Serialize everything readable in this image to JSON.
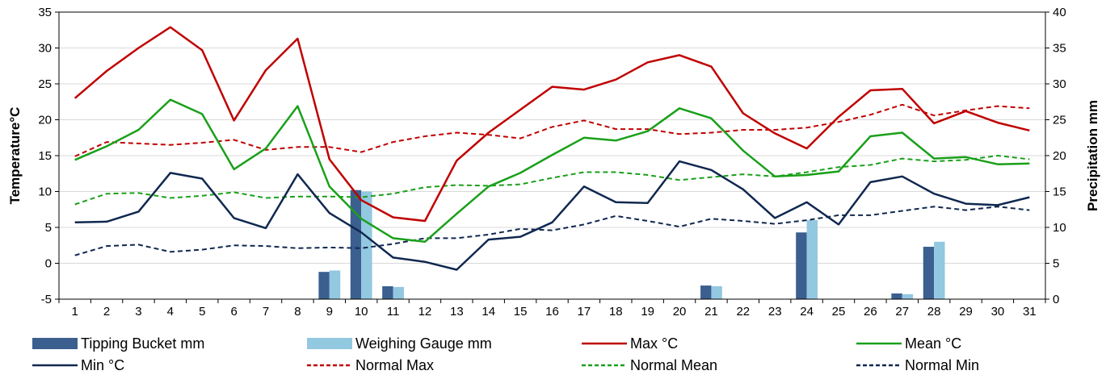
{
  "chart_data": {
    "type": "bar+line",
    "title": "",
    "x": [
      1,
      2,
      3,
      4,
      5,
      6,
      7,
      8,
      9,
      10,
      11,
      12,
      13,
      14,
      15,
      16,
      17,
      18,
      19,
      20,
      21,
      22,
      23,
      24,
      25,
      26,
      27,
      28,
      29,
      30,
      31
    ],
    "x_ticks": [
      "1",
      "2",
      "3",
      "4",
      "5",
      "6",
      "7",
      "8",
      "9",
      "10",
      "11",
      "12",
      "13",
      "14",
      "15",
      "16",
      "17",
      "18",
      "19",
      "20",
      "21",
      "22",
      "23",
      "24",
      "25",
      "26",
      "27",
      "28",
      "29",
      "30",
      "31"
    ],
    "y_left": {
      "label": "Temperature°C",
      "range": [
        -5,
        35
      ],
      "ticks": [
        "-5",
        "0",
        "5",
        "10",
        "15",
        "20",
        "25",
        "30",
        "35"
      ]
    },
    "y_right": {
      "label": "Precipitation mm",
      "range": [
        0,
        40
      ],
      "ticks": [
        "0",
        "5",
        "10",
        "15",
        "20",
        "25",
        "30",
        "35",
        "40"
      ]
    },
    "grid": true,
    "legend_position": "bottom",
    "bar_series": [
      {
        "name": "Tipping Bucket mm",
        "color": "#3b5f8f",
        "axis": "right",
        "values": [
          0,
          0,
          0,
          0,
          0,
          0,
          0,
          0,
          3.8,
          15.2,
          1.8,
          0,
          0,
          0,
          0,
          0,
          0,
          0,
          0,
          0,
          1.9,
          0,
          0,
          9.3,
          0,
          0,
          0.8,
          7.3,
          0,
          0,
          0
        ]
      },
      {
        "name": "Weighing Gauge mm",
        "color": "#92c8e0",
        "axis": "right",
        "values": [
          0,
          0,
          0,
          0,
          0,
          0,
          0,
          0,
          4.0,
          15.0,
          1.7,
          0,
          0,
          0,
          0,
          0,
          0,
          0,
          0,
          0,
          1.8,
          0,
          0,
          11.0,
          0,
          0,
          0.7,
          8.0,
          0,
          0,
          0
        ]
      }
    ],
    "line_series": [
      {
        "name": "Max °C",
        "color": "#c00000",
        "dash": "solid",
        "axis": "left",
        "values": [
          23.0,
          26.8,
          30.0,
          32.9,
          29.7,
          19.9,
          26.9,
          31.3,
          14.5,
          8.8,
          6.4,
          5.9,
          14.3,
          18.2,
          21.4,
          24.6,
          24.2,
          25.6,
          28.0,
          29.0,
          27.4,
          20.9,
          18.1,
          16.0,
          20.4,
          24.1,
          24.3,
          19.5,
          21.2,
          19.6,
          18.5
        ]
      },
      {
        "name": "Mean °C",
        "color": "#1aa01a",
        "dash": "solid",
        "axis": "left",
        "values": [
          14.4,
          16.3,
          18.6,
          22.8,
          20.8,
          13.1,
          16.0,
          21.9,
          10.7,
          6.2,
          3.5,
          3.0,
          6.9,
          10.7,
          12.6,
          15.1,
          17.5,
          17.1,
          18.4,
          21.6,
          20.2,
          15.7,
          12.1,
          12.3,
          12.8,
          17.7,
          18.2,
          14.6,
          14.8,
          13.8,
          13.9
        ]
      },
      {
        "name": "Min °C",
        "color": "#102850",
        "dash": "solid",
        "axis": "left",
        "values": [
          5.7,
          5.8,
          7.2,
          12.6,
          11.8,
          6.3,
          4.9,
          12.4,
          7.0,
          4.3,
          0.8,
          0.2,
          -0.9,
          3.3,
          3.7,
          5.7,
          10.7,
          8.5,
          8.4,
          14.2,
          13.0,
          10.3,
          6.3,
          8.5,
          5.4,
          11.3,
          12.1,
          9.7,
          8.3,
          8.1,
          9.2
        ]
      },
      {
        "name": "Normal Max",
        "color": "#c00000",
        "dash": "dashed",
        "axis": "left",
        "values": [
          14.9,
          16.9,
          16.7,
          16.5,
          16.8,
          17.2,
          15.8,
          16.2,
          16.2,
          15.5,
          16.9,
          17.7,
          18.2,
          17.9,
          17.4,
          19.0,
          19.9,
          18.7,
          18.7,
          18.0,
          18.2,
          18.6,
          18.6,
          18.9,
          19.7,
          20.7,
          22.1,
          20.6,
          21.3,
          21.9,
          21.6
        ]
      },
      {
        "name": "Normal Mean",
        "color": "#1aa01a",
        "dash": "dashed",
        "axis": "left",
        "values": [
          8.2,
          9.7,
          9.8,
          9.1,
          9.4,
          9.9,
          9.1,
          9.3,
          9.3,
          9.2,
          9.7,
          10.6,
          10.9,
          10.8,
          11.0,
          11.9,
          12.7,
          12.7,
          12.3,
          11.6,
          12.0,
          12.4,
          12.1,
          12.7,
          13.4,
          13.7,
          14.6,
          14.2,
          14.4,
          15.0,
          14.5
        ]
      },
      {
        "name": "Normal Min",
        "color": "#102850",
        "dash": "dashed",
        "axis": "left",
        "values": [
          1.1,
          2.4,
          2.6,
          1.6,
          1.9,
          2.5,
          2.4,
          2.1,
          2.2,
          2.1,
          2.7,
          3.5,
          3.5,
          4.0,
          4.8,
          4.6,
          5.4,
          6.6,
          5.9,
          5.1,
          6.2,
          5.9,
          5.5,
          6.0,
          6.7,
          6.7,
          7.3,
          7.9,
          7.4,
          7.9,
          7.4
        ]
      }
    ],
    "legend_order": [
      "Tipping Bucket mm",
      "Weighing Gauge mm",
      "Max °C",
      "Mean °C",
      "Min °C",
      "Normal Max",
      "Normal Mean",
      "Normal Min"
    ]
  }
}
